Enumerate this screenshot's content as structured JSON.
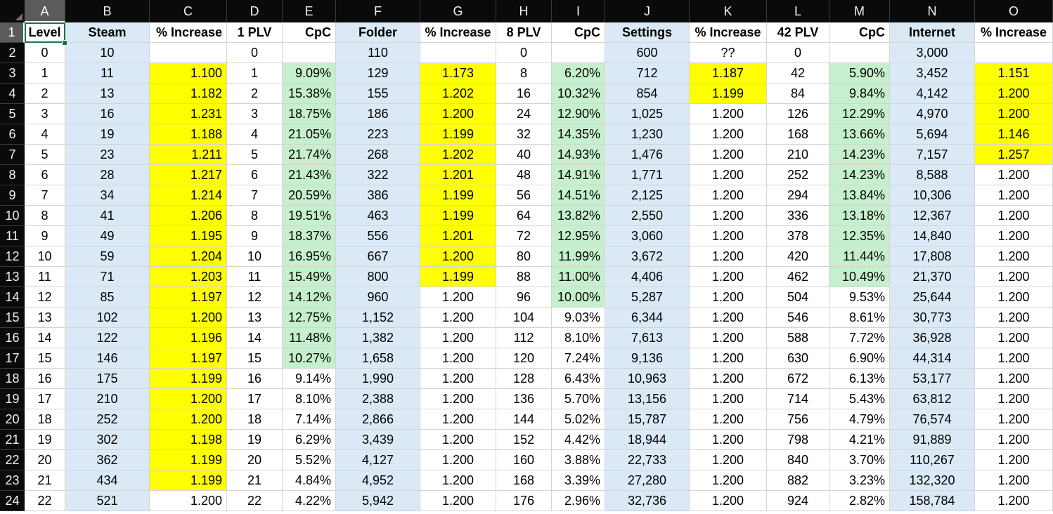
{
  "selected": {
    "column": "A",
    "row": "1"
  },
  "columns": [
    {
      "letter": "A",
      "header": "Level",
      "align": "center",
      "fill": ""
    },
    {
      "letter": "B",
      "header": "Steam",
      "align": "center",
      "fill": "blue"
    },
    {
      "letter": "C",
      "header": "% Increase",
      "align": "right",
      "fill": ""
    },
    {
      "letter": "D",
      "header": "1 PLV",
      "align": "center",
      "fill": ""
    },
    {
      "letter": "E",
      "header": "CpC",
      "align": "right",
      "fill": ""
    },
    {
      "letter": "F",
      "header": "Folder",
      "align": "center",
      "fill": "blue"
    },
    {
      "letter": "G",
      "header": "% Increase",
      "align": "center",
      "fill": ""
    },
    {
      "letter": "H",
      "header": "8 PLV",
      "align": "center",
      "fill": ""
    },
    {
      "letter": "I",
      "header": "CpC",
      "align": "right",
      "fill": ""
    },
    {
      "letter": "J",
      "header": "Settings",
      "align": "center",
      "fill": "blue"
    },
    {
      "letter": "K",
      "header": "% Increase",
      "align": "center",
      "fill": ""
    },
    {
      "letter": "L",
      "header": "42 PLV",
      "align": "center",
      "fill": ""
    },
    {
      "letter": "M",
      "header": "CpC",
      "align": "right",
      "fill": ""
    },
    {
      "letter": "N",
      "header": "Internet",
      "align": "center",
      "fill": "blue"
    },
    {
      "letter": "O",
      "header": "% Increase",
      "align": "center",
      "fill": ""
    }
  ],
  "rows": [
    {
      "num": "2",
      "cells": [
        "0",
        "10",
        "",
        "0",
        "",
        "110",
        "",
        "0",
        "",
        "600",
        "??",
        "0",
        "",
        "3,000",
        ""
      ]
    },
    {
      "num": "3",
      "cells": [
        "1",
        "11",
        "1.100",
        "1",
        "9.09%",
        "129",
        "1.173",
        "8",
        "6.20%",
        "712",
        "1.187",
        "42",
        "5.90%",
        "3,452",
        "1.151"
      ]
    },
    {
      "num": "4",
      "cells": [
        "2",
        "13",
        "1.182",
        "2",
        "15.38%",
        "155",
        "1.202",
        "16",
        "10.32%",
        "854",
        "1.199",
        "84",
        "9.84%",
        "4,142",
        "1.200"
      ]
    },
    {
      "num": "5",
      "cells": [
        "3",
        "16",
        "1.231",
        "3",
        "18.75%",
        "186",
        "1.200",
        "24",
        "12.90%",
        "1,025",
        "1.200",
        "126",
        "12.29%",
        "4,970",
        "1.200"
      ]
    },
    {
      "num": "6",
      "cells": [
        "4",
        "19",
        "1.188",
        "4",
        "21.05%",
        "223",
        "1.199",
        "32",
        "14.35%",
        "1,230",
        "1.200",
        "168",
        "13.66%",
        "5,694",
        "1.146"
      ]
    },
    {
      "num": "7",
      "cells": [
        "5",
        "23",
        "1.211",
        "5",
        "21.74%",
        "268",
        "1.202",
        "40",
        "14.93%",
        "1,476",
        "1.200",
        "210",
        "14.23%",
        "7,157",
        "1.257"
      ]
    },
    {
      "num": "8",
      "cells": [
        "6",
        "28",
        "1.217",
        "6",
        "21.43%",
        "322",
        "1.201",
        "48",
        "14.91%",
        "1,771",
        "1.200",
        "252",
        "14.23%",
        "8,588",
        "1.200"
      ]
    },
    {
      "num": "9",
      "cells": [
        "7",
        "34",
        "1.214",
        "7",
        "20.59%",
        "386",
        "1.199",
        "56",
        "14.51%",
        "2,125",
        "1.200",
        "294",
        "13.84%",
        "10,306",
        "1.200"
      ]
    },
    {
      "num": "10",
      "cells": [
        "8",
        "41",
        "1.206",
        "8",
        "19.51%",
        "463",
        "1.199",
        "64",
        "13.82%",
        "2,550",
        "1.200",
        "336",
        "13.18%",
        "12,367",
        "1.200"
      ]
    },
    {
      "num": "11",
      "cells": [
        "9",
        "49",
        "1.195",
        "9",
        "18.37%",
        "556",
        "1.201",
        "72",
        "12.95%",
        "3,060",
        "1.200",
        "378",
        "12.35%",
        "14,840",
        "1.200"
      ]
    },
    {
      "num": "12",
      "cells": [
        "10",
        "59",
        "1.204",
        "10",
        "16.95%",
        "667",
        "1.200",
        "80",
        "11.99%",
        "3,672",
        "1.200",
        "420",
        "11.44%",
        "17,808",
        "1.200"
      ]
    },
    {
      "num": "13",
      "cells": [
        "11",
        "71",
        "1.203",
        "11",
        "15.49%",
        "800",
        "1.199",
        "88",
        "11.00%",
        "4,406",
        "1.200",
        "462",
        "10.49%",
        "21,370",
        "1.200"
      ]
    },
    {
      "num": "14",
      "cells": [
        "12",
        "85",
        "1.197",
        "12",
        "14.12%",
        "960",
        "1.200",
        "96",
        "10.00%",
        "5,287",
        "1.200",
        "504",
        "9.53%",
        "25,644",
        "1.200"
      ]
    },
    {
      "num": "15",
      "cells": [
        "13",
        "102",
        "1.200",
        "13",
        "12.75%",
        "1,152",
        "1.200",
        "104",
        "9.03%",
        "6,344",
        "1.200",
        "546",
        "8.61%",
        "30,773",
        "1.200"
      ]
    },
    {
      "num": "16",
      "cells": [
        "14",
        "122",
        "1.196",
        "14",
        "11.48%",
        "1,382",
        "1.200",
        "112",
        "8.10%",
        "7,613",
        "1.200",
        "588",
        "7.72%",
        "36,928",
        "1.200"
      ]
    },
    {
      "num": "17",
      "cells": [
        "15",
        "146",
        "1.197",
        "15",
        "10.27%",
        "1,658",
        "1.200",
        "120",
        "7.24%",
        "9,136",
        "1.200",
        "630",
        "6.90%",
        "44,314",
        "1.200"
      ]
    },
    {
      "num": "18",
      "cells": [
        "16",
        "175",
        "1.199",
        "16",
        "9.14%",
        "1,990",
        "1.200",
        "128",
        "6.43%",
        "10,963",
        "1.200",
        "672",
        "6.13%",
        "53,177",
        "1.200"
      ]
    },
    {
      "num": "19",
      "cells": [
        "17",
        "210",
        "1.200",
        "17",
        "8.10%",
        "2,388",
        "1.200",
        "136",
        "5.70%",
        "13,156",
        "1.200",
        "714",
        "5.43%",
        "63,812",
        "1.200"
      ]
    },
    {
      "num": "20",
      "cells": [
        "18",
        "252",
        "1.200",
        "18",
        "7.14%",
        "2,866",
        "1.200",
        "144",
        "5.02%",
        "15,787",
        "1.200",
        "756",
        "4.79%",
        "76,574",
        "1.200"
      ]
    },
    {
      "num": "21",
      "cells": [
        "19",
        "302",
        "1.198",
        "19",
        "6.29%",
        "3,439",
        "1.200",
        "152",
        "4.42%",
        "18,944",
        "1.200",
        "798",
        "4.21%",
        "91,889",
        "1.200"
      ]
    },
    {
      "num": "22",
      "cells": [
        "20",
        "362",
        "1.199",
        "20",
        "5.52%",
        "4,127",
        "1.200",
        "160",
        "3.88%",
        "22,733",
        "1.200",
        "840",
        "3.70%",
        "110,267",
        "1.200"
      ]
    },
    {
      "num": "23",
      "cells": [
        "21",
        "434",
        "1.199",
        "21",
        "4.84%",
        "4,952",
        "1.200",
        "168",
        "3.39%",
        "27,280",
        "1.200",
        "882",
        "3.23%",
        "132,320",
        "1.200"
      ]
    },
    {
      "num": "24",
      "cells": [
        "22",
        "521",
        "1.200",
        "22",
        "4.22%",
        "5,942",
        "1.200",
        "176",
        "2.96%",
        "32,736",
        "1.200",
        "924",
        "2.82%",
        "158,784",
        "1.200"
      ]
    }
  ],
  "highlights": {
    "yellow": [
      {
        "column": "C",
        "from": "3",
        "to": "23"
      },
      {
        "column": "G",
        "from": "3",
        "to": "13"
      },
      {
        "column": "K",
        "from": "3",
        "to": "4"
      },
      {
        "column": "O",
        "from": "3",
        "to": "7"
      }
    ],
    "green": [
      {
        "column": "E",
        "from": "3",
        "to": "17"
      },
      {
        "column": "I",
        "from": "3",
        "to": "14"
      },
      {
        "column": "M",
        "from": "3",
        "to": "13"
      }
    ]
  },
  "colors": {
    "yellow": "#ffff00",
    "green": "#c6efce",
    "blue": "#dbe9f7",
    "selection": "#1e7145"
  }
}
